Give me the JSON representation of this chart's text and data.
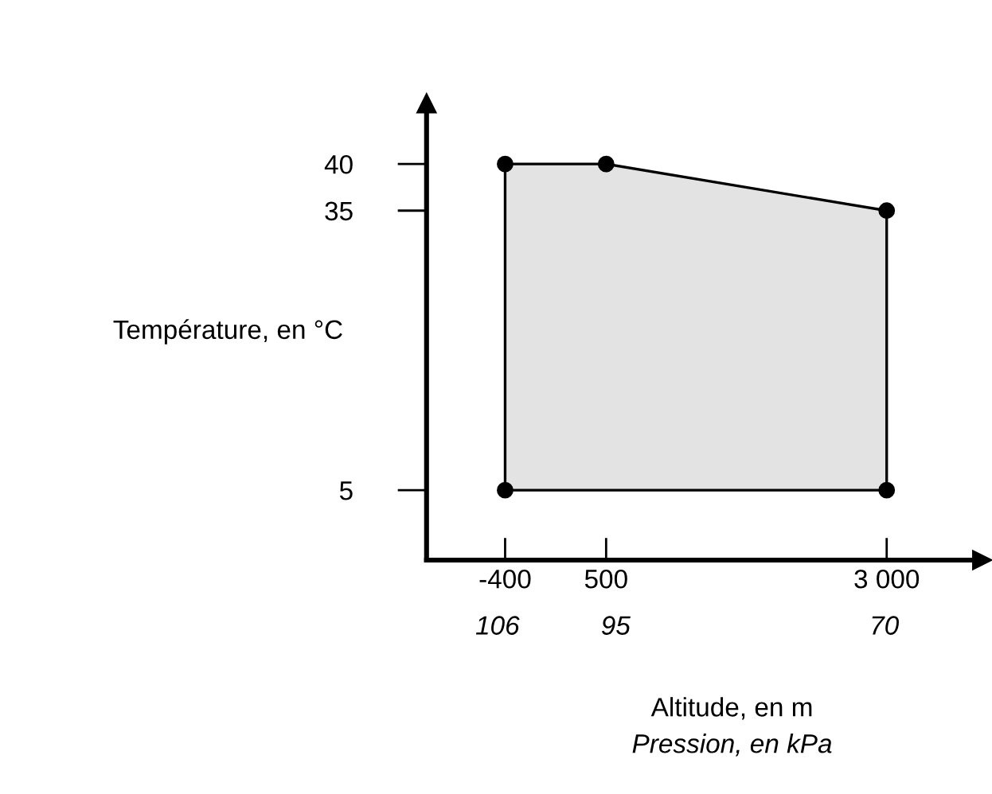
{
  "chart_data": {
    "type": "area",
    "xlabel": "Altitude, en m",
    "ylabel": "Température, en °C",
    "x2label": "Pression, en kPa",
    "xlim": [
      -1100,
      3850
    ],
    "ylim": [
      -2.5,
      46.5
    ],
    "xticks": [
      -400,
      500,
      {
        "value": 3000,
        "label": "3 000"
      }
    ],
    "x2lim": [
      112.6,
      60.9
    ],
    "x2ticks": [
      106,
      95,
      70
    ],
    "yticks": [
      5,
      35,
      40
    ],
    "grid": false,
    "legend": false,
    "marker": "circle",
    "line_style": "solid",
    "series": [
      {
        "color": "#000000",
        "x": [
          -400,
          -400,
          500,
          3000,
          3000
        ],
        "values": [
          5,
          40,
          40,
          35,
          5
        ]
      }
    ]
  }
}
